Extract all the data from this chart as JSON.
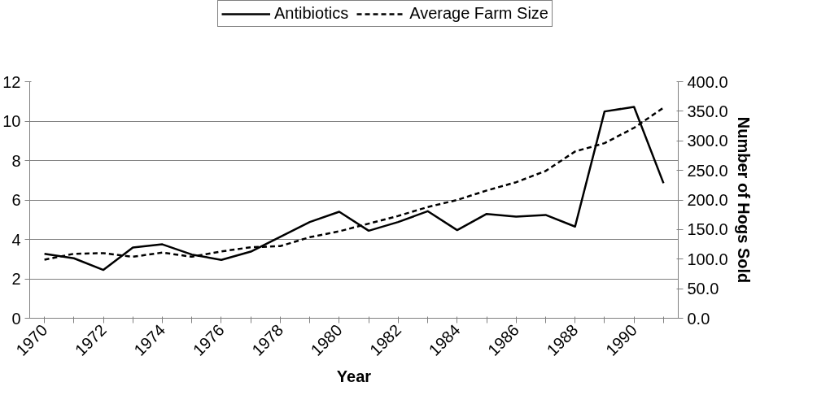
{
  "chart_data": {
    "type": "line",
    "xlabel": "Year",
    "y2label": "Number of Hogs Sold",
    "categories": [
      "1970",
      null,
      "1972",
      null,
      "1974",
      null,
      "1976",
      null,
      "1978",
      null,
      "1980",
      null,
      "1982",
      null,
      "1984",
      null,
      "1986",
      null,
      "1988",
      null,
      "1990",
      null
    ],
    "series": [
      {
        "name": "Antibiotics",
        "color": "#000000",
        "line_style": "solid",
        "values": [
          3.27,
          3.04,
          2.45,
          3.59,
          3.75,
          3.23,
          2.96,
          3.38,
          4.13,
          4.88,
          5.4,
          4.44,
          4.88,
          5.43,
          4.47,
          5.29,
          5.15,
          5.24,
          4.65,
          10.49,
          10.72,
          6.85
        ]
      },
      {
        "name": "Average Farm Size",
        "color": "#000000",
        "line_style": "dashed",
        "axis": "y2",
        "values": [
          99,
          109,
          110,
          104,
          111,
          104,
          113,
          120,
          122,
          137,
          147,
          160,
          173,
          188,
          200,
          216,
          230,
          249,
          282,
          296,
          322,
          356
        ]
      }
    ],
    "ylim": [
      0,
      12
    ],
    "yticks": [
      0,
      2,
      4,
      6,
      8,
      10,
      12
    ],
    "y2lim": [
      0,
      400
    ],
    "y2ticks": [
      {
        "value": 0,
        "label": "0.0"
      },
      {
        "value": 50,
        "label": "50.0"
      },
      {
        "value": 100,
        "label": "100.0"
      },
      {
        "value": 150,
        "label": "150.0"
      },
      {
        "value": 200,
        "label": "200.0"
      },
      {
        "value": 250,
        "label": "250.0"
      },
      {
        "value": 300,
        "label": "300.0"
      },
      {
        "value": 350,
        "label": "350.0"
      },
      {
        "value": 400,
        "label": "400.0"
      }
    ],
    "grid": "y",
    "legend": "top",
    "marker": "none"
  }
}
